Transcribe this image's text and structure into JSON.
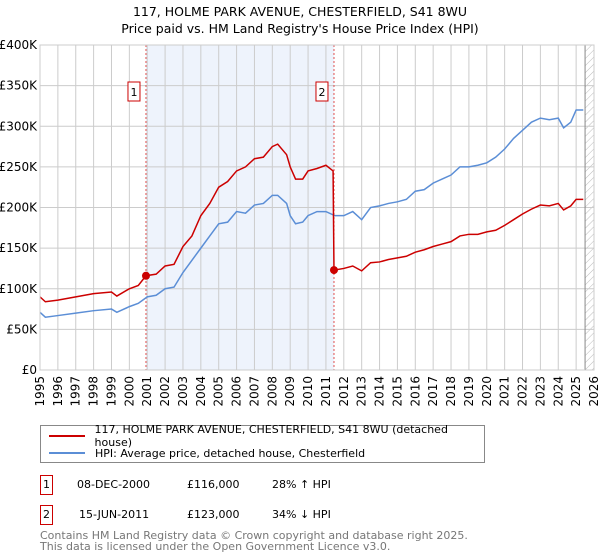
{
  "chart_data": {
    "type": "line",
    "title": "117, HOLME PARK AVENUE, CHESTERFIELD, S41 8WU",
    "subtitle": "Price paid vs. HM Land Registry's House Price Index (HPI)",
    "xlim": [
      1995,
      2026
    ],
    "ylim": [
      0,
      400000
    ],
    "x_ticks": [
      "1995",
      "1996",
      "1997",
      "1998",
      "1999",
      "2000",
      "2001",
      "2002",
      "2003",
      "2004",
      "2005",
      "2006",
      "2007",
      "2008",
      "2009",
      "2010",
      "2011",
      "2012",
      "2013",
      "2014",
      "2015",
      "2016",
      "2017",
      "2018",
      "2019",
      "2020",
      "2021",
      "2022",
      "2023",
      "2024",
      "2025",
      "2026"
    ],
    "y_ticks": [
      {
        "v": 0,
        "label": "£0"
      },
      {
        "v": 50000,
        "label": "£50K"
      },
      {
        "v": 100000,
        "label": "£100K"
      },
      {
        "v": 150000,
        "label": "£150K"
      },
      {
        "v": 200000,
        "label": "£200K"
      },
      {
        "v": 250000,
        "label": "£250K"
      },
      {
        "v": 300000,
        "label": "£300K"
      },
      {
        "v": 350000,
        "label": "£350K"
      },
      {
        "v": 400000,
        "label": "£400K"
      }
    ],
    "grid": true,
    "shaded_range": [
      2000.93,
      2011.45
    ],
    "forecast_hatch_from": 2025.5,
    "series": [
      {
        "name": "117, HOLME PARK AVENUE, CHESTERFIELD, S41 8WU (detached house)",
        "color": "#cc0000",
        "x": [
          1995,
          1995.3,
          1996,
          1997,
          1998,
          1999,
          1999.3,
          2000,
          2000.5,
          2000.93,
          2001.5,
          2002,
          2002.5,
          2003,
          2003.5,
          2004,
          2004.5,
          2005,
          2005.5,
          2006,
          2006.5,
          2007,
          2007.5,
          2008,
          2008.3,
          2008.8,
          2009,
          2009.3,
          2009.7,
          2010,
          2010.5,
          2011,
          2011.4,
          2011.45,
          2012,
          2012.5,
          2013,
          2013.5,
          2014,
          2014.5,
          2015,
          2015.5,
          2016,
          2016.5,
          2017,
          2017.5,
          2018,
          2018.5,
          2019,
          2019.5,
          2020,
          2020.5,
          2021,
          2021.5,
          2022,
          2022.5,
          2023,
          2023.5,
          2024,
          2024.3,
          2024.7,
          2025,
          2025.4
        ],
        "y": [
          90000,
          84000,
          86000,
          90000,
          94000,
          96000,
          91000,
          100000,
          104000,
          116000,
          118000,
          128000,
          130000,
          152000,
          165000,
          190000,
          205000,
          225000,
          232000,
          245000,
          250000,
          260000,
          262000,
          275000,
          278000,
          265000,
          250000,
          235000,
          235000,
          245000,
          248000,
          252000,
          245000,
          123000,
          125000,
          128000,
          122000,
          132000,
          133000,
          136000,
          138000,
          140000,
          145000,
          148000,
          152000,
          155000,
          158000,
          165000,
          167000,
          167000,
          170000,
          172000,
          178000,
          185000,
          192000,
          198000,
          203000,
          202000,
          205000,
          197000,
          202000,
          210000,
          210000
        ]
      },
      {
        "name": "HPI: Average price, detached house, Chesterfield",
        "color": "#5b8ed6",
        "x": [
          1995,
          1995.3,
          1996,
          1997,
          1998,
          1999,
          1999.3,
          2000,
          2000.5,
          2001,
          2001.5,
          2002,
          2002.5,
          2003,
          2004,
          2004.5,
          2005,
          2005.5,
          2006,
          2006.5,
          2007,
          2007.5,
          2008,
          2008.3,
          2008.8,
          2009,
          2009.3,
          2009.7,
          2010,
          2010.5,
          2011,
          2011.5,
          2012,
          2012.5,
          2013,
          2013.5,
          2014,
          2014.5,
          2015,
          2015.5,
          2016,
          2016.5,
          2017,
          2017.5,
          2018,
          2018.5,
          2019,
          2019.5,
          2020,
          2020.5,
          2021,
          2021.5,
          2022,
          2022.5,
          2023,
          2023.5,
          2024,
          2024.3,
          2024.7,
          2025,
          2025.4
        ],
        "y": [
          71000,
          65000,
          67000,
          70000,
          73000,
          75000,
          71000,
          78000,
          82000,
          90000,
          92000,
          100000,
          102000,
          120000,
          150000,
          165000,
          180000,
          182000,
          195000,
          193000,
          203000,
          205000,
          215000,
          215000,
          205000,
          190000,
          180000,
          182000,
          190000,
          195000,
          195000,
          190000,
          190000,
          195000,
          185000,
          200000,
          202000,
          205000,
          207000,
          210000,
          220000,
          222000,
          230000,
          235000,
          240000,
          250000,
          250000,
          252000,
          255000,
          262000,
          272000,
          285000,
          295000,
          305000,
          310000,
          308000,
          310000,
          298000,
          305000,
          320000,
          320000
        ]
      }
    ],
    "markers": [
      {
        "label": "1",
        "x": 2000.93,
        "y": 116000
      },
      {
        "label": "2",
        "x": 2011.45,
        "y": 123000
      }
    ]
  },
  "transactions": [
    {
      "num": "1",
      "date": "08-DEC-2000",
      "price": "£116,000",
      "hpi": "28% ↑ HPI"
    },
    {
      "num": "2",
      "date": "15-JUN-2011",
      "price": "£123,000",
      "hpi": "34% ↓ HPI"
    }
  ],
  "footer": {
    "line1": "Contains HM Land Registry data © Crown copyright and database right 2025.",
    "line2": "This data is licensed under the Open Government Licence v3.0."
  }
}
